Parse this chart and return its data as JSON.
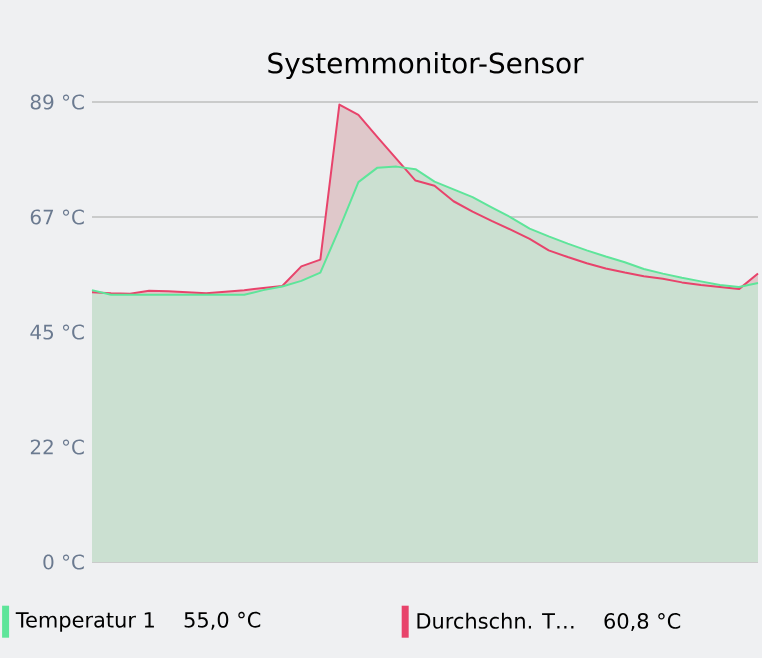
{
  "chart_data": {
    "type": "area",
    "title": "Systemmonitor-Sensor",
    "categories": [
      null,
      null,
      null,
      null,
      null,
      null,
      null,
      null,
      null,
      null,
      null,
      null,
      null,
      null,
      null,
      null,
      null,
      null,
      null,
      null,
      null,
      null,
      null,
      null,
      null,
      null,
      null,
      null,
      null,
      null,
      null,
      null,
      null,
      null,
      null,
      null
    ],
    "series": [
      {
        "name": "Temperatur 1",
        "color": "#5ee59a",
        "values": [
          52.6,
          51.7,
          51.7,
          51.7,
          51.7,
          51.7,
          51.7,
          51.7,
          51.7,
          52.6,
          53.3,
          54.4,
          56.0,
          64.5,
          73.5,
          76.3,
          76.5,
          76.0,
          73.6,
          72.1,
          70.6,
          68.6,
          66.7,
          64.5,
          63.0,
          61.6,
          60.3,
          59.1,
          58.0,
          56.7,
          55.8,
          55.0,
          54.3,
          53.6,
          53.2,
          54.0
        ]
      },
      {
        "name": "Durchschn. T…",
        "color": "#e8436b",
        "values": [
          52.2,
          52.0,
          51.9,
          52.5,
          52.4,
          52.2,
          52.0,
          52.3,
          52.6,
          53.0,
          53.4,
          57.2,
          58.5,
          88.5,
          86.5,
          82.2,
          78.0,
          73.8,
          72.8,
          69.8,
          67.8,
          66.0,
          64.3,
          62.5,
          60.3,
          59.0,
          57.8,
          56.8,
          56.0,
          55.3,
          54.8,
          54.1,
          53.6,
          53.2,
          52.8,
          55.8
        ]
      }
    ],
    "ylim": [
      0,
      89
    ],
    "yticks": [
      {
        "value": 0,
        "label": "0 °C"
      },
      {
        "value": 22.25,
        "label": "22 °C"
      },
      {
        "value": 44.5,
        "label": "45 °C"
      },
      {
        "value": 66.75,
        "label": "67 °C"
      },
      {
        "value": 89,
        "label": "89 °C"
      }
    ],
    "grid": "y",
    "legend": "bottom",
    "marker": "none",
    "annotations": [
      "55,0 °C",
      "60,8 °C"
    ]
  }
}
